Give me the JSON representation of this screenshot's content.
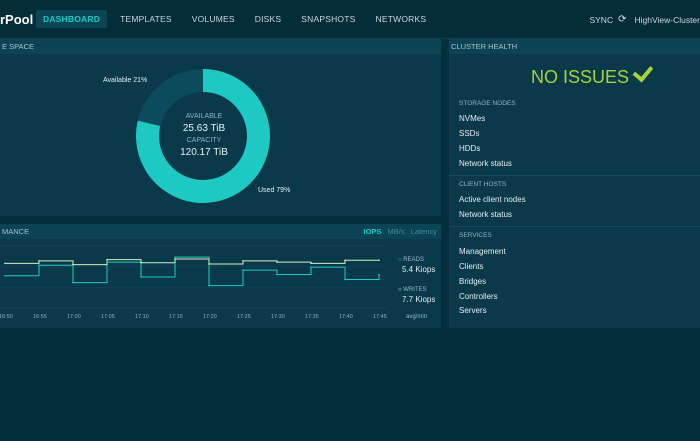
{
  "app": {
    "brand": "rPool"
  },
  "nav": {
    "items": [
      "DASHBOARD",
      "TEMPLATES",
      "VOLUMES",
      "DISKS",
      "SNAPSHOTS",
      "NETWORKS"
    ],
    "sync_label": "SYNC",
    "cluster_name": "HighView-Cluster"
  },
  "space": {
    "title": "E SPACE",
    "available_label": "AVAILABLE",
    "available_value": "25.63 TiB",
    "capacity_label": "CAPACITY",
    "capacity_value": "120.17 TiB",
    "available_slice_label": "Available 21%",
    "used_slice_label": "Used 79%",
    "colors": {
      "used": "#1ec9c4",
      "available": "#0c4a5e"
    }
  },
  "performance": {
    "title": "MANCE",
    "tabs": [
      "IOPS",
      "MB/s",
      "Latency"
    ],
    "reads_label": "READS",
    "reads_value": "5.4 Kiops",
    "writes_label": "WRITES",
    "writes_value": "7.7 Kiops",
    "avg_label": "avg/min",
    "colors": {
      "reads": "#1ec9c4",
      "writes": "#d8efc4"
    }
  },
  "chart_data": {
    "type": "line",
    "x": [
      "16:50",
      "16:55",
      "17:00",
      "17:05",
      "17:10",
      "17:15",
      "17:20",
      "17:25",
      "17:30",
      "17:35",
      "17:40",
      "17:45"
    ],
    "series": [
      {
        "name": "READS",
        "values": [
          5.2,
          6.9,
          4.1,
          7.4,
          5.0,
          8.2,
          3.6,
          6.1,
          5.4,
          6.6,
          4.6,
          5.4
        ]
      },
      {
        "name": "WRITES",
        "values": [
          7.2,
          7.6,
          7.0,
          7.8,
          7.3,
          7.9,
          7.1,
          7.6,
          7.4,
          7.2,
          7.7,
          7.7
        ]
      }
    ]
  },
  "health": {
    "title": "CLUSTER HEALTH",
    "status": "NO ISSUES",
    "storage_title": "STORAGE NODES",
    "storage_items": [
      "NVMes",
      "SSDs",
      "HDDs",
      "Network status"
    ],
    "client_title": "CLIENT HOSTS",
    "client_items": [
      "Active client nodes",
      "Network status"
    ],
    "services_title": "SERVICES",
    "services_items": [
      "Management",
      "Clients",
      "Bridges",
      "Controllers",
      "Servers"
    ]
  }
}
